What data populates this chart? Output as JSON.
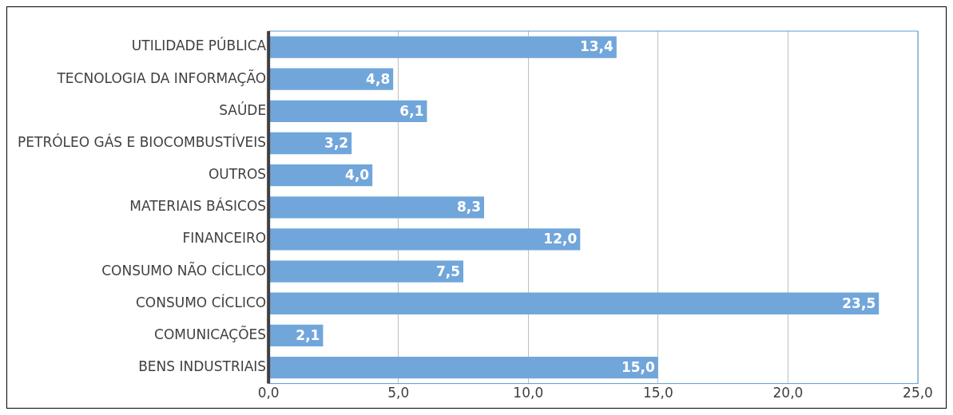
{
  "chart_data": {
    "type": "bar",
    "orientation": "horizontal",
    "categories": [
      "UTILIDADE PÚBLICA",
      "TECNOLOGIA DA INFORMAÇÃO",
      "SAÚDE",
      "PETRÓLEO GÁS E BIOCOMBUSTÍVEIS",
      "OUTROS",
      "MATERIAIS BÁSICOS",
      "FINANCEIRO",
      "CONSUMO NÃO CÍCLICO",
      "CONSUMO CÍCLICO",
      "COMUNICAÇÕES",
      "BENS INDUSTRIAIS"
    ],
    "values": [
      13.4,
      4.8,
      6.1,
      3.2,
      4.0,
      8.3,
      12.0,
      7.5,
      23.5,
      2.1,
      15.0
    ],
    "value_labels": [
      "13,4",
      "4,8",
      "6,1",
      "3,2",
      "4,0",
      "8,3",
      "12,0",
      "7,5",
      "23,5",
      "2,1",
      "15,0"
    ],
    "color": "#71a6db",
    "xlim": [
      0,
      25
    ],
    "xticks": [
      {
        "value": 0,
        "label": "0,0"
      },
      {
        "value": 5,
        "label": "5,0"
      },
      {
        "value": 10,
        "label": "10,0"
      },
      {
        "value": 15,
        "label": "15,0"
      },
      {
        "value": 20,
        "label": "20,0"
      },
      {
        "value": 25,
        "label": "25,0"
      }
    ],
    "grid": "x",
    "legend": false
  }
}
